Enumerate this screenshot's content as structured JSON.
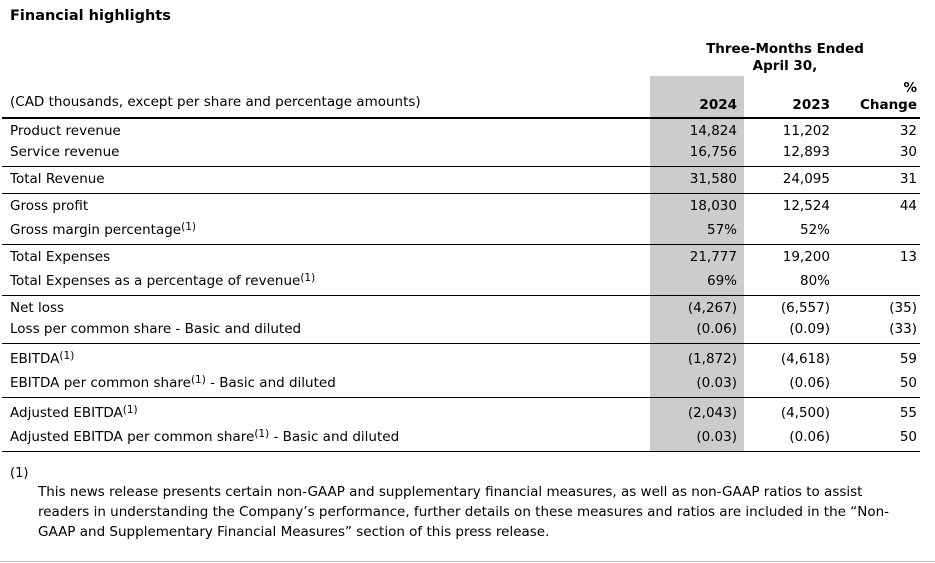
{
  "title": "Financial highlights",
  "colors": {
    "column_shade": "#cccccc",
    "rule_color": "#000000",
    "text_color": "#000000",
    "bottom_edge": "#c4c4c4"
  },
  "table": {
    "period": {
      "line1": "Three-Months Ended",
      "line2": "April 30,"
    },
    "unit_note": "(CAD thousands, except per share and percentage amounts)",
    "columns": {
      "y2024": "2024",
      "y2023": "2023",
      "change_line1": "%",
      "change_line2": "Change"
    },
    "groups": [
      {
        "rows": [
          {
            "label": "Product revenue",
            "y2024": "14,824",
            "y2023": "11,202",
            "change": "32"
          },
          {
            "label": "Service revenue",
            "y2024": "16,756",
            "y2023": "12,893",
            "change": "30"
          }
        ]
      },
      {
        "rows": [
          {
            "label": "Total Revenue",
            "y2024": "31,580",
            "y2023": "24,095",
            "change": "31"
          }
        ]
      },
      {
        "rows": [
          {
            "label": "Gross profit",
            "y2024": "18,030",
            "y2023": "12,524",
            "change": "44"
          },
          {
            "label": "Gross margin percentage",
            "sup": "(1)",
            "y2024": "57%",
            "y2023": "52%",
            "change": ""
          }
        ]
      },
      {
        "rows": [
          {
            "label": "Total Expenses",
            "y2024": "21,777",
            "y2023": "19,200",
            "change": "13"
          },
          {
            "label": "Total Expenses as a percentage of revenue",
            "sup": "(1)",
            "y2024": "69%",
            "y2023": "80%",
            "change": ""
          }
        ]
      },
      {
        "rows": [
          {
            "label": "Net loss",
            "y2024": "(4,267)",
            "y2023": "(6,557)",
            "change": "(35)"
          },
          {
            "label": "Loss per common share - Basic and diluted",
            "y2024": "(0.06)",
            "y2023": "(0.09)",
            "change": "(33)"
          }
        ]
      },
      {
        "rows": [
          {
            "label": "EBITDA",
            "sup": "(1)",
            "y2024": "(1,872)",
            "y2023": "(4,618)",
            "change": "59"
          },
          {
            "label": "EBITDA per common share",
            "sup": "(1)",
            "label_suffix": " - Basic and diluted",
            "y2024": "(0.03)",
            "y2023": "(0.06)",
            "change": "50"
          }
        ]
      },
      {
        "rows": [
          {
            "label": "Adjusted EBITDA",
            "sup": "(1)",
            "y2024": "(2,043)",
            "y2023": "(4,500)",
            "change": "55"
          },
          {
            "label": "Adjusted EBITDA per common share",
            "sup": "(1)",
            "label_suffix": " - Basic and diluted",
            "y2024": "(0.03)",
            "y2023": "(0.06)",
            "change": "50"
          }
        ]
      }
    ]
  },
  "footnote": {
    "marker": "(1)",
    "text": "This news release presents certain non-GAAP and supplementary financial measures, as well as non-GAAP ratios to assist readers in understanding the Company’s performance, further details on these measures and ratios are included in the “Non-GAAP and Supplementary Financial Measures” section of this press release."
  }
}
